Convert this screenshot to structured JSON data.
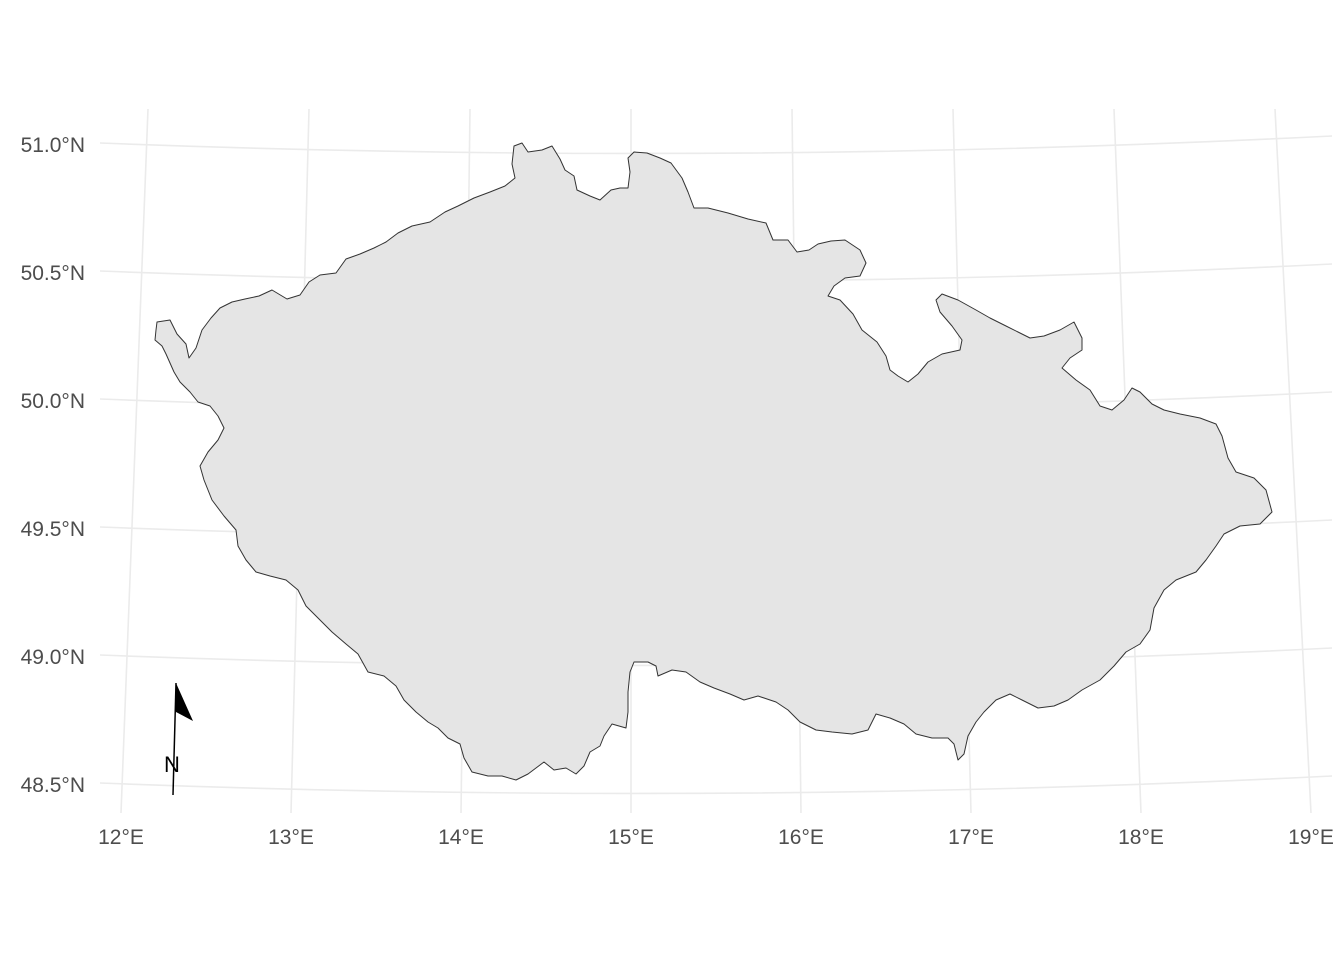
{
  "map": {
    "region": "Czech Republic",
    "projection": "conic",
    "background": "#ffffff",
    "graticule_color": "#ebebeb",
    "country_fill": "#e5e5e5",
    "country_stroke": "#333333"
  },
  "axes": {
    "x_ticks": [
      "12°E",
      "13°E",
      "14°E",
      "15°E",
      "16°E",
      "17°E",
      "18°E",
      "19°E"
    ],
    "y_ticks": [
      "51.0°N",
      "50.5°N",
      "50.0°N",
      "49.5°N",
      "49.0°N",
      "48.5°N"
    ]
  },
  "north_arrow": {
    "label": "N",
    "icon": "north-arrow-icon"
  }
}
